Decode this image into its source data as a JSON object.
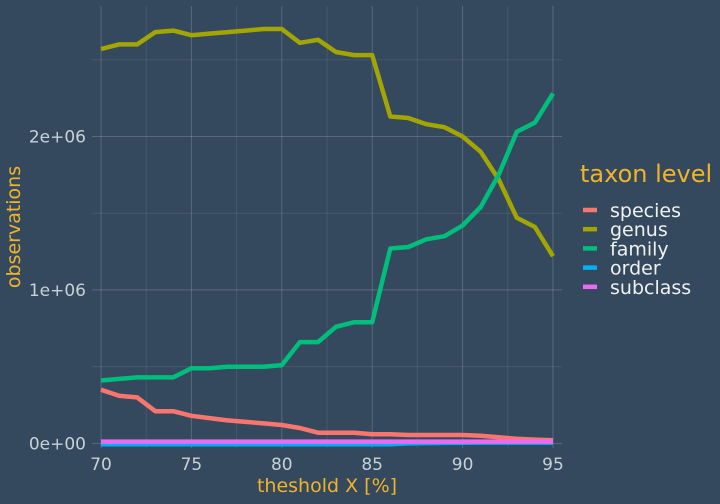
{
  "chart_data": {
    "type": "line",
    "xlabel": "theshold X [%]",
    "ylabel": "observations",
    "xlim": [
      69.5,
      95.5
    ],
    "ylim": [
      -30000,
      2850000
    ],
    "x_ticks": [
      70,
      75,
      80,
      85,
      90,
      95
    ],
    "x_tick_labels": [
      "70",
      "75",
      "80",
      "85",
      "90",
      "95"
    ],
    "y_ticks": [
      0,
      1000000,
      2000000
    ],
    "y_tick_labels": [
      "0e+00",
      "1e+06",
      "2e+06"
    ],
    "grid": true,
    "legend": {
      "title": "taxon level",
      "position": "right"
    },
    "x": [
      70,
      71,
      72,
      73,
      74,
      75,
      76,
      77,
      78,
      79,
      80,
      81,
      82,
      83,
      84,
      85,
      86,
      87,
      88,
      89,
      90,
      91,
      92,
      93,
      94,
      95
    ],
    "series": [
      {
        "name": "species",
        "color": "#f8766d",
        "values": [
          350000,
          310000,
          300000,
          210000,
          210000,
          180000,
          165000,
          150000,
          140000,
          130000,
          120000,
          100000,
          70000,
          70000,
          70000,
          60000,
          60000,
          55000,
          55000,
          55000,
          55000,
          50000,
          40000,
          30000,
          25000,
          20000
        ]
      },
      {
        "name": "genus",
        "color": "#a3a500",
        "values": [
          2570000,
          2600000,
          2600000,
          2680000,
          2690000,
          2660000,
          2670000,
          2680000,
          2690000,
          2700000,
          2700000,
          2610000,
          2630000,
          2550000,
          2530000,
          2530000,
          2130000,
          2120000,
          2080000,
          2060000,
          2000000,
          1900000,
          1720000,
          1470000,
          1410000,
          1220000
        ]
      },
      {
        "name": "family",
        "color": "#00bf7d",
        "values": [
          410000,
          420000,
          430000,
          430000,
          430000,
          490000,
          490000,
          500000,
          500000,
          500000,
          510000,
          660000,
          660000,
          760000,
          790000,
          790000,
          1270000,
          1280000,
          1330000,
          1350000,
          1420000,
          1540000,
          1750000,
          2030000,
          2090000,
          2280000
        ]
      },
      {
        "name": "order",
        "color": "#00b0f6",
        "values": [
          -5000,
          -5000,
          -5000,
          -5000,
          -5000,
          -5000,
          -5000,
          -5000,
          -5000,
          -5000,
          -5000,
          -5000,
          -5000,
          -5000,
          -5000,
          -5000,
          -5000,
          0,
          2000,
          3000,
          4000,
          5000,
          5000,
          5000,
          5000,
          5000
        ]
      },
      {
        "name": "subclass",
        "color": "#e76bf3",
        "values": [
          12000,
          12000,
          12000,
          12000,
          12000,
          12000,
          12000,
          12000,
          12000,
          12000,
          12000,
          12000,
          12000,
          12000,
          12000,
          12000,
          12000,
          12000,
          12000,
          12000,
          12000,
          12000,
          12000,
          12000,
          12000,
          12000
        ]
      }
    ]
  }
}
